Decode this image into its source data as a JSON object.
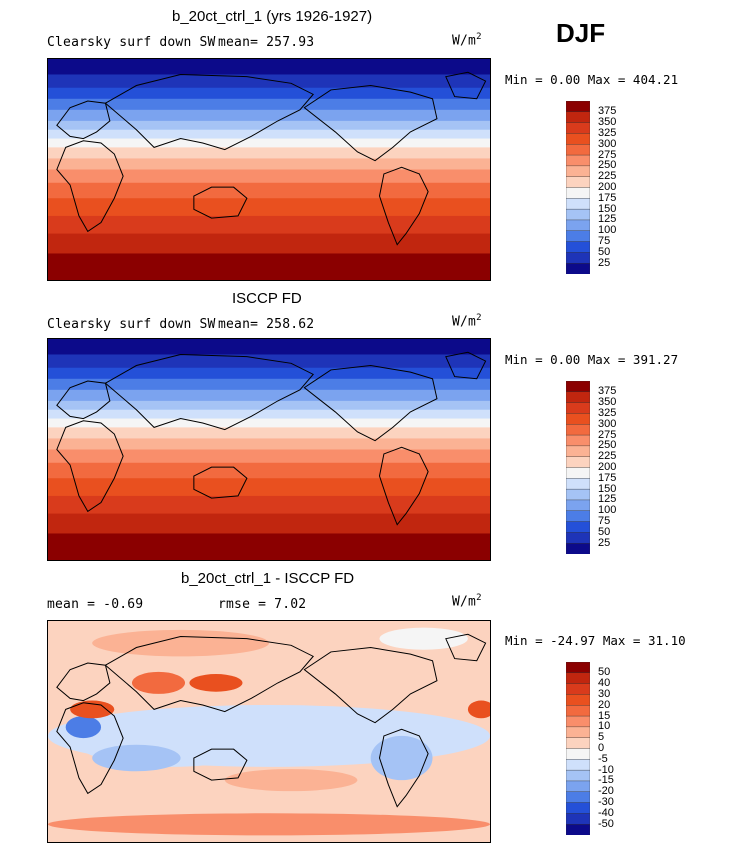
{
  "season": "DJF",
  "panels": [
    {
      "title": "b_20ct_ctrl_1 (yrs 1926-1927)",
      "left_label": "Clearsky surf down SW",
      "stat_label": "mean= 257.93",
      "units": "W/m",
      "units_sup": "2",
      "minmax": "Min =    0.00 Max = 404.21",
      "colorbar_labels": [
        "375",
        "350",
        "325",
        "300",
        "275",
        "250",
        "225",
        "200",
        "175",
        "150",
        "125",
        "100",
        "75",
        "50",
        "25"
      ],
      "colors": [
        "#8b0000",
        "#c1260f",
        "#d93b1c",
        "#e9501f",
        "#f26a3f",
        "#f98e6b",
        "#fbb294",
        "#fcd3bf",
        "#f5f5f5",
        "#cfe0fb",
        "#a5c3f5",
        "#7ba3ef",
        "#4c7de6",
        "#2450d8",
        "#1e34b8",
        "#0c0a8a"
      ],
      "kind": "sw"
    },
    {
      "title": "ISCCP FD",
      "left_label": "Clearsky surf down SW",
      "stat_label": "mean= 258.62",
      "units": "W/m",
      "units_sup": "2",
      "minmax": "Min =    0.00 Max = 391.27",
      "colorbar_labels": [
        "375",
        "350",
        "325",
        "300",
        "275",
        "250",
        "225",
        "200",
        "175",
        "150",
        "125",
        "100",
        "75",
        "50",
        "25"
      ],
      "colors": [
        "#8b0000",
        "#c1260f",
        "#d93b1c",
        "#e9501f",
        "#f26a3f",
        "#f98e6b",
        "#fbb294",
        "#fcd3bf",
        "#f5f5f5",
        "#cfe0fb",
        "#a5c3f5",
        "#7ba3ef",
        "#4c7de6",
        "#2450d8",
        "#1e34b8",
        "#0c0a8a"
      ],
      "kind": "sw"
    },
    {
      "title": "b_20ct_ctrl_1 - ISCCP FD",
      "left_label": "mean =  -0.69",
      "stat_label": "rmse =   7.02",
      "units": "W/m",
      "units_sup": "2",
      "minmax": "Min = -24.97 Max =  31.10",
      "colorbar_labels": [
        "50",
        "40",
        "30",
        "20",
        "15",
        "10",
        "5",
        "0",
        "-5",
        "-10",
        "-15",
        "-20",
        "-30",
        "-40",
        "-50"
      ],
      "colors": [
        "#8b0000",
        "#c1260f",
        "#d93b1c",
        "#e9501f",
        "#f26a3f",
        "#f98e6b",
        "#fbb294",
        "#fcd3bf",
        "#f5f5f5",
        "#cfe0fb",
        "#a5c3f5",
        "#7ba3ef",
        "#4c7de6",
        "#2450d8",
        "#1e34b8",
        "#0c0a8a"
      ],
      "kind": "diff"
    }
  ]
}
